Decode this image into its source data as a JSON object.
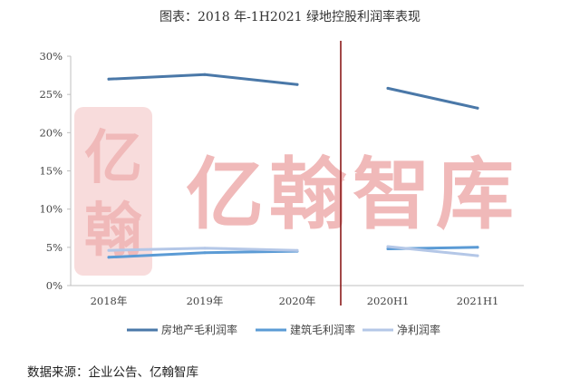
{
  "chart_data": {
    "type": "line",
    "title": "图表：2018 年-1H2021 绿地控股利润率表现",
    "categories": [
      "2018年",
      "2019年",
      "2020年",
      "2020H1",
      "2021H1"
    ],
    "yticks": [
      "0%",
      "5%",
      "10%",
      "15%",
      "20%",
      "25%",
      "30%"
    ],
    "ylim": [
      0,
      30
    ],
    "divider_after": "2020年",
    "series": [
      {
        "name": "房地产毛利润率",
        "color": "#4a78a8",
        "values": [
          27.0,
          27.6,
          26.3,
          25.8,
          23.2
        ]
      },
      {
        "name": "建筑毛利润率",
        "color": "#5b9bd5",
        "values": [
          3.7,
          4.3,
          4.5,
          4.8,
          5.0
        ]
      },
      {
        "name": "净利润率",
        "color": "#b4c7e7",
        "values": [
          4.6,
          4.9,
          4.6,
          5.1,
          3.9
        ]
      }
    ],
    "grid": false,
    "legend_position": "bottom"
  },
  "watermark": {
    "brand": "亿翰智库",
    "seal": [
      "亿",
      "翰"
    ]
  },
  "source_text": "数据来源：企业公告、亿翰智库",
  "colors": {
    "divider": "#8b1a1a",
    "axis": "#bfbfbf"
  }
}
